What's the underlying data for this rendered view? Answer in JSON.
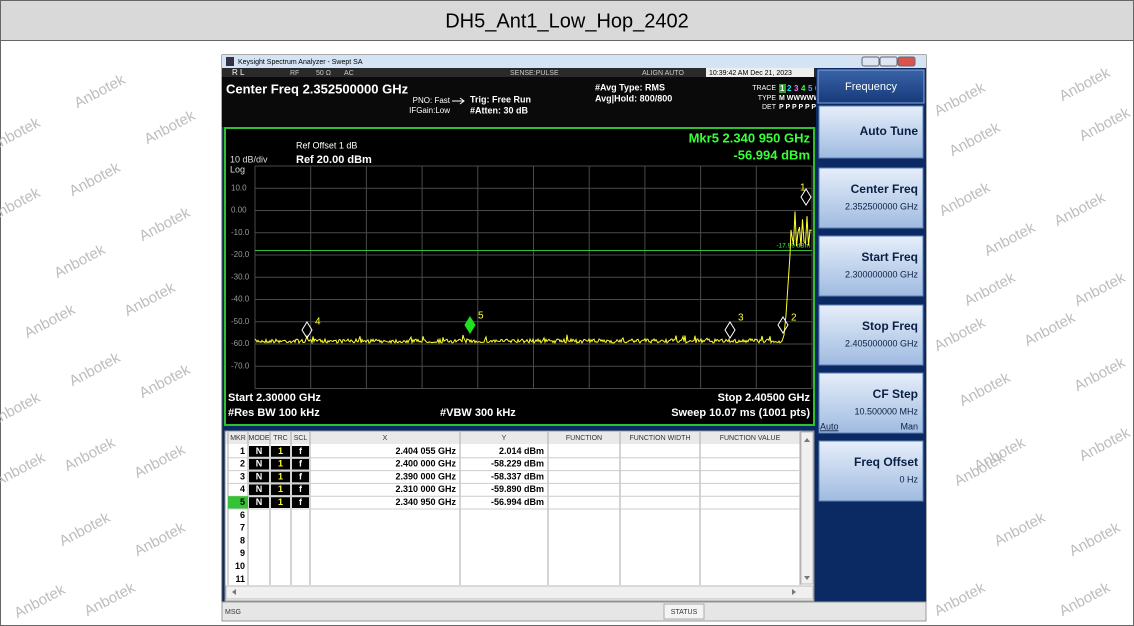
{
  "title": "DH5_Ant1_Low_Hop_2402",
  "watermark": "Anbotek",
  "window_title": "Keysight Spectrum Analyzer - Swept SA",
  "status": {
    "rl": "R L",
    "rf": "RF",
    "impedance": "50 Ω",
    "coupling": "AC",
    "sense": "SENSE:PULSE",
    "align": "ALIGN AUTO",
    "datetime": "10:39:42 AM Dec 21, 2023",
    "center_freq": "Center Freq 2.352500000 GHz",
    "pno": "PNO: Fast",
    "ifgain": "IFGain:Low",
    "trig": "Trig: Free Run",
    "atten": "#Atten: 30 dB",
    "avg_type": "#Avg Type: RMS",
    "avg_hold": "Avg|Hold: 800/800",
    "trace_label": "TRACE",
    "trace_nums": [
      "1",
      "2",
      "3",
      "4",
      "5",
      "6"
    ],
    "type_label": "TYPE",
    "type_value": "M WWWWW",
    "det_label": "DET",
    "det_value": "P P P P P P"
  },
  "plot": {
    "ref_offset": "Ref Offset 1 dB",
    "scale": "10 dB/div",
    "ref_level": "Ref 20.00 dBm",
    "log": "Log",
    "marker_freq": "Mkr5 2.340 950 GHz",
    "marker_level": "-56.994 dBm",
    "y_labels": [
      "10.0",
      "0.00",
      "-10.0",
      "-20.0",
      "-30.0",
      "-40.0",
      "-50.0",
      "-60.0",
      "-70.0"
    ],
    "display_line": "-17.99 dBm",
    "marker_labels": [
      "1",
      "2",
      "3",
      "4",
      "5"
    ],
    "start": "Start 2.30000 GHz",
    "stop": "Stop 2.40500 GHz",
    "rbw": "#Res BW 100 kHz",
    "vbw": "#VBW 300 kHz",
    "sweep": "Sweep  10.07 ms (1001 pts)"
  },
  "marker_table": {
    "headers": [
      "MKR",
      "MODE",
      "TRC",
      "SCL",
      "X",
      "Y",
      "FUNCTION",
      "FUNCTION WIDTH",
      "FUNCTION VALUE"
    ],
    "rows": [
      [
        "1",
        "N",
        "1",
        "f",
        "2.404 055 GHz",
        "2.014 dBm"
      ],
      [
        "2",
        "N",
        "1",
        "f",
        "2.400 000 GHz",
        "-58.229 dBm"
      ],
      [
        "3",
        "N",
        "1",
        "f",
        "2.390 000 GHz",
        "-58.337 dBm"
      ],
      [
        "4",
        "N",
        "1",
        "f",
        "2.310 000 GHz",
        "-59.890 dBm"
      ],
      [
        "5",
        "N",
        "1",
        "f",
        "2.340 950 GHz",
        "-56.994 dBm"
      ]
    ],
    "empty_rows": [
      "6",
      "7",
      "8",
      "9",
      "10",
      "11"
    ]
  },
  "softkeys": {
    "menu": "Frequency",
    "keys": [
      {
        "label": "Auto Tune"
      },
      {
        "label": "Center Freq",
        "value": "2.352500000 GHz"
      },
      {
        "label": "Start Freq",
        "value": "2.300000000 GHz"
      },
      {
        "label": "Stop Freq",
        "value": "2.405000000 GHz"
      },
      {
        "label": "CF Step",
        "value": "10.500000 MHz",
        "options": [
          "Auto",
          "Man"
        ]
      },
      {
        "label": "Freq Offset",
        "value": "0 Hz"
      }
    ]
  },
  "footer": {
    "msg": "MSG",
    "status": "STATUS"
  }
}
